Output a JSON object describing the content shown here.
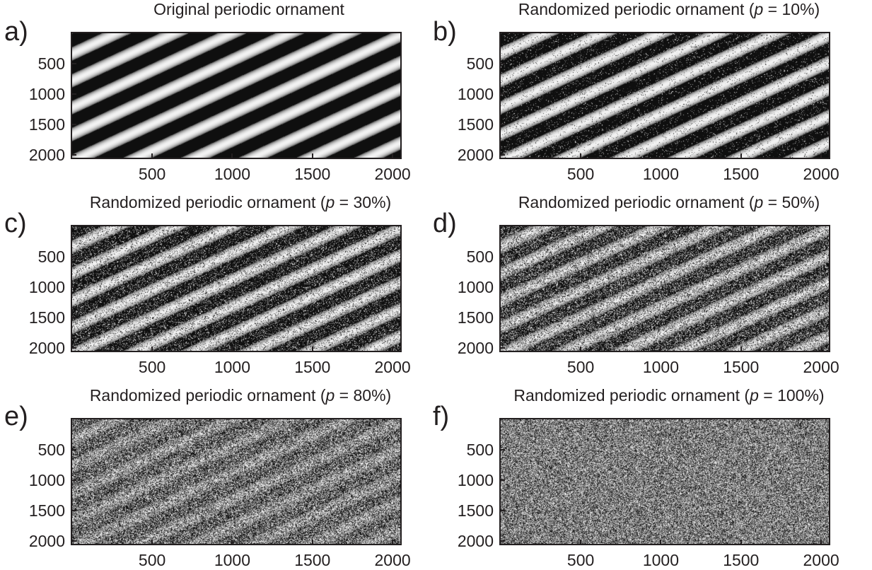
{
  "chart_data": [
    {
      "panel_label": "a)",
      "title": "Original periodic ornament",
      "type": "heatmap",
      "p_percent": 0,
      "xticks": [
        500,
        1000,
        1500,
        2000
      ],
      "yticks": [
        500,
        1000,
        1500,
        2000
      ],
      "xlim": [
        1,
        2048
      ],
      "ylim": [
        1,
        2048
      ],
      "y_reversed": true,
      "stripe_count": 5,
      "colormap": "gray"
    },
    {
      "panel_label": "b)",
      "title_prefix": "Randomized periodic ornament (",
      "title_var": "p",
      "title_suffix": " = 10%)",
      "type": "heatmap",
      "p_percent": 10,
      "xticks": [
        500,
        1000,
        1500,
        2000
      ],
      "yticks": [
        500,
        1000,
        1500,
        2000
      ],
      "xlim": [
        1,
        2048
      ],
      "ylim": [
        1,
        2048
      ],
      "y_reversed": true,
      "stripe_count": 5,
      "colormap": "gray"
    },
    {
      "panel_label": "c)",
      "title_prefix": "Randomized periodic ornament (",
      "title_var": "p",
      "title_suffix": " = 30%)",
      "type": "heatmap",
      "p_percent": 30,
      "xticks": [
        500,
        1000,
        1500,
        2000
      ],
      "yticks": [
        500,
        1000,
        1500,
        2000
      ],
      "xlim": [
        1,
        2048
      ],
      "ylim": [
        1,
        2048
      ],
      "y_reversed": true,
      "stripe_count": 5,
      "colormap": "gray"
    },
    {
      "panel_label": "d)",
      "title_prefix": "Randomized periodic ornament (",
      "title_var": "p",
      "title_suffix": " = 50%)",
      "type": "heatmap",
      "p_percent": 50,
      "xticks": [
        500,
        1000,
        1500,
        2000
      ],
      "yticks": [
        500,
        1000,
        1500,
        2000
      ],
      "xlim": [
        1,
        2048
      ],
      "ylim": [
        1,
        2048
      ],
      "y_reversed": true,
      "stripe_count": 5,
      "colormap": "gray"
    },
    {
      "panel_label": "e)",
      "title_prefix": "Randomized periodic ornament (",
      "title_var": "p",
      "title_suffix": " = 80%)",
      "type": "heatmap",
      "p_percent": 80,
      "xticks": [
        500,
        1000,
        1500,
        2000
      ],
      "yticks": [
        500,
        1000,
        1500,
        2000
      ],
      "xlim": [
        1,
        2048
      ],
      "ylim": [
        1,
        2048
      ],
      "y_reversed": true,
      "stripe_count": 5,
      "colormap": "gray"
    },
    {
      "panel_label": "f)",
      "title_prefix": "Randomized periodic ornament (",
      "title_var": "p",
      "title_suffix": " = 100%)",
      "type": "heatmap",
      "p_percent": 100,
      "xticks": [
        500,
        1000,
        1500,
        2000
      ],
      "yticks": [
        500,
        1000,
        1500,
        2000
      ],
      "xlim": [
        1,
        2048
      ],
      "ylim": [
        1,
        2048
      ],
      "y_reversed": true,
      "stripe_count": 5,
      "colormap": "gray"
    }
  ]
}
